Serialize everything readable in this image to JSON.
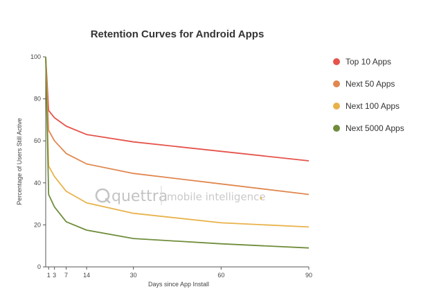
{
  "chart_data": {
    "type": "line",
    "title": "Retention Curves for Android Apps",
    "xlabel": "Days since App Install",
    "ylabel": "Percentage of Users Still Active",
    "xlim": [
      0,
      90
    ],
    "ylim": [
      0,
      100
    ],
    "x_ticks": [
      1,
      3,
      7,
      14,
      30,
      60,
      90
    ],
    "y_ticks": [
      0,
      20,
      40,
      60,
      80,
      100
    ],
    "grid": false,
    "legend_position": "right",
    "x": [
      0,
      1,
      3,
      7,
      14,
      30,
      60,
      90
    ],
    "series": [
      {
        "name": "Top 10 Apps",
        "color": "#e5534b",
        "values": [
          100,
          74.5,
          71,
          67,
          63,
          59.5,
          55,
          50.5
        ]
      },
      {
        "name": "Next 50 Apps",
        "color": "#e0874f",
        "values": [
          100,
          65,
          60,
          54,
          49,
          44.5,
          39.5,
          34.5
        ]
      },
      {
        "name": "Next 100 Apps",
        "color": "#e8b24a",
        "values": [
          100,
          48,
          43,
          36,
          30.5,
          25.5,
          21,
          19
        ]
      },
      {
        "name": "Next 5000 Apps",
        "color": "#6f8d3a",
        "values": [
          100,
          34.5,
          28.5,
          21.5,
          17.5,
          13.5,
          11,
          9
        ]
      }
    ]
  },
  "watermark": {
    "brand": "quettra",
    "tagline": "mobile intelligence",
    "color": "#bdbdbd"
  }
}
